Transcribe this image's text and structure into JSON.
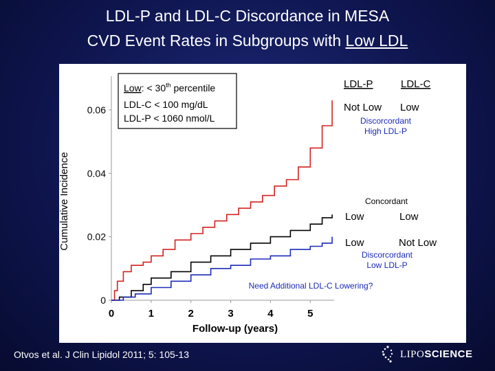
{
  "slide": {
    "title_line1": "LDL-P and LDL-C Discordance in MESA",
    "title_line2_prefix": "CVD Event Rates in Subgroups with ",
    "title_line2_emph": "Low LDL",
    "citation": "Otvos et al. J Clin Lipidol 2011; 5: 105-13",
    "logo_prefix": "LIPO",
    "logo_suffix": "SCIENCE"
  },
  "colors": {
    "discordant_high": "#d42020",
    "concordant": "#000000",
    "discordant_low": "#1a2ab8",
    "annotation": "#1a2ab8"
  },
  "box": {
    "line1_word": "Low",
    "line1_sep": ":  < 30",
    "line1_sup": "th",
    "line1_rest": " percentile",
    "line2": "LDL-C < 100 mg/dL",
    "line3": "LDL-P < 1060 nmol/L"
  },
  "table": {
    "col1_header": "LDL-P",
    "col2_header": "LDL-C",
    "high_ldlp": "Not Low",
    "high_ldlc": "Low",
    "conc_ldlp": "Low",
    "conc_ldlc": "Low",
    "low_ldlp": "Low",
    "low_ldlc": "Not Low"
  },
  "annotations": {
    "high_line1": "Discorcordant",
    "high_line2": "High LDL-P",
    "concordant": "Concordant",
    "low_line1": "Discorcordant",
    "low_line2": "Low LDL-P",
    "question": "Need Additional LDL-C Lowering?"
  },
  "chart_data": {
    "type": "line",
    "title": "",
    "xlabel": "Follow-up (years)",
    "ylabel": "Cumulative Incidence",
    "xlim": [
      0,
      5.6
    ],
    "ylim": [
      0,
      0.068
    ],
    "xticks": [
      0,
      1,
      2,
      3,
      4,
      5
    ],
    "xtick_labels": [
      "0",
      "1",
      "2",
      "3",
      "4",
      "5"
    ],
    "yticks": [
      0,
      0.02,
      0.04,
      0.06
    ],
    "ytick_labels": [
      "0",
      "0.02",
      "0.04",
      "0.06"
    ],
    "series": [
      {
        "name": "Discordant High LDL-P",
        "key": "discordant_high",
        "x": [
          0,
          0.08,
          0.15,
          0.3,
          0.5,
          0.8,
          1.0,
          1.3,
          1.6,
          2.0,
          2.3,
          2.6,
          2.9,
          3.2,
          3.5,
          3.8,
          4.1,
          4.4,
          4.7,
          5.0,
          5.3,
          5.55
        ],
        "y": [
          0,
          0.003,
          0.006,
          0.009,
          0.011,
          0.012,
          0.014,
          0.016,
          0.019,
          0.021,
          0.023,
          0.025,
          0.027,
          0.029,
          0.031,
          0.033,
          0.036,
          0.038,
          0.042,
          0.048,
          0.055,
          0.063
        ]
      },
      {
        "name": "Concordant",
        "key": "concordant",
        "x": [
          0,
          0.2,
          0.5,
          0.8,
          1.0,
          1.5,
          2.0,
          2.5,
          3.0,
          3.5,
          4.0,
          4.5,
          5.0,
          5.3,
          5.55
        ],
        "y": [
          0,
          0.001,
          0.003,
          0.005,
          0.007,
          0.009,
          0.012,
          0.014,
          0.016,
          0.018,
          0.02,
          0.022,
          0.024,
          0.026,
          0.027
        ]
      },
      {
        "name": "Discordant Low LDL-P",
        "key": "discordant_low",
        "x": [
          0,
          0.3,
          0.6,
          1.0,
          1.5,
          2.0,
          2.5,
          3.0,
          3.5,
          4.0,
          4.5,
          5.0,
          5.3,
          5.55
        ],
        "y": [
          0,
          0.001,
          0.002,
          0.004,
          0.006,
          0.008,
          0.01,
          0.011,
          0.013,
          0.014,
          0.016,
          0.017,
          0.018,
          0.02
        ]
      }
    ]
  }
}
